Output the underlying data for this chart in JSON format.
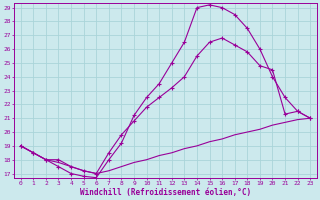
{
  "xlabel": "Windchill (Refroidissement éolien,°C)",
  "background_color": "#cce9ed",
  "grid_color": "#aad4d9",
  "line_color": "#990099",
  "xlim": [
    -0.5,
    23.5
  ],
  "ylim": [
    16.7,
    29.3
  ],
  "yticks": [
    17,
    18,
    19,
    20,
    21,
    22,
    23,
    24,
    25,
    26,
    27,
    28,
    29
  ],
  "xticks": [
    0,
    1,
    2,
    3,
    4,
    5,
    6,
    7,
    8,
    9,
    10,
    11,
    12,
    13,
    14,
    15,
    16,
    17,
    18,
    19,
    20,
    21,
    22,
    23
  ],
  "curve1_x": [
    0,
    1,
    2,
    3,
    4,
    5,
    6,
    7,
    8,
    9,
    10,
    11,
    12,
    13,
    14,
    15,
    16,
    17,
    18,
    19,
    20,
    21,
    22,
    23
  ],
  "curve1_y": [
    19.0,
    18.5,
    18.0,
    17.5,
    17.0,
    16.8,
    16.7,
    18.0,
    19.2,
    21.2,
    22.5,
    23.5,
    25.0,
    26.5,
    29.0,
    29.2,
    29.0,
    28.5,
    27.5,
    26.0,
    24.0,
    22.5,
    21.5,
    21.0
  ],
  "curve2_x": [
    0,
    1,
    2,
    3,
    4,
    5,
    6,
    7,
    8,
    9,
    10,
    11,
    12,
    13,
    14,
    15,
    16,
    17,
    18,
    19,
    20,
    21,
    22,
    23
  ],
  "curve2_y": [
    19.0,
    18.5,
    18.0,
    18.0,
    17.5,
    17.2,
    17.0,
    18.5,
    19.8,
    20.8,
    21.8,
    22.5,
    23.2,
    24.0,
    25.5,
    26.5,
    26.8,
    26.3,
    25.8,
    24.8,
    24.5,
    21.3,
    21.5,
    21.0
  ],
  "curve3_x": [
    0,
    1,
    2,
    3,
    4,
    5,
    6,
    7,
    8,
    9,
    10,
    11,
    12,
    13,
    14,
    15,
    16,
    17,
    18,
    19,
    20,
    21,
    22,
    23
  ],
  "curve3_y": [
    19.0,
    18.5,
    18.0,
    17.8,
    17.5,
    17.2,
    17.0,
    17.2,
    17.5,
    17.8,
    18.0,
    18.3,
    18.5,
    18.8,
    19.0,
    19.3,
    19.5,
    19.8,
    20.0,
    20.2,
    20.5,
    20.7,
    20.9,
    21.0
  ]
}
